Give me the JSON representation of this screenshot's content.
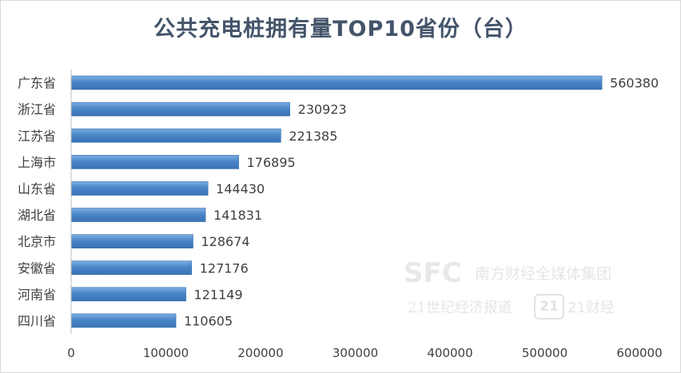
{
  "chart_data": {
    "type": "bar",
    "orientation": "horizontal",
    "title": "公共充电桩拥有量TOP10省份（台）",
    "categories": [
      "广东省",
      "浙江省",
      "江苏省",
      "上海市",
      "山东省",
      "湖北省",
      "北京市",
      "安徽省",
      "河南省",
      "四川省"
    ],
    "values": [
      560380,
      230923,
      221385,
      176895,
      144430,
      141831,
      128674,
      127176,
      121149,
      110605
    ],
    "xlim": [
      0,
      600000
    ],
    "xticks": [
      0,
      100000,
      200000,
      300000,
      400000,
      500000,
      600000
    ],
    "xtick_labels": [
      "0",
      "100000",
      "200000",
      "300000",
      "400000",
      "500000",
      "600000"
    ],
    "grid": false,
    "data_labels": true,
    "bar_color": "#4a86c8",
    "bar_edge_color": "#2e6db0"
  },
  "watermark": {
    "brand": "SFC",
    "group_name": "南方财经全媒体集团",
    "outlet_a": "21世纪经济报道",
    "badge": "21",
    "outlet_b": "21财经"
  }
}
